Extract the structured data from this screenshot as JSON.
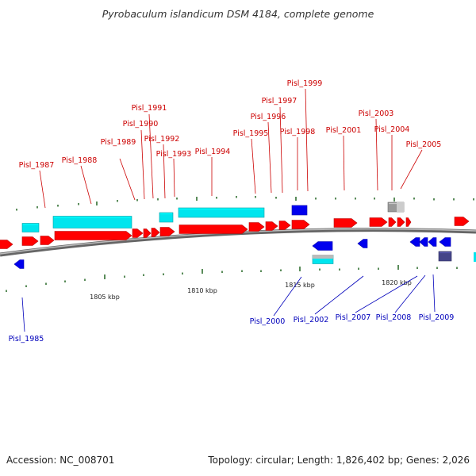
{
  "title": "Pyrobaculum islandicum DSM 4184, complete genome",
  "footer": {
    "accession": "Accession: NC_008701",
    "summary": "Topology: circular; Length: 1,826,402 bp; Genes: 2,026"
  },
  "colors": {
    "forward_cds": "#ff0000",
    "reverse_cds": "#0000ee",
    "forward_rna": "#00e5ee",
    "other_feature": "#999999",
    "backbone": "#888888",
    "forward_label": "#cc0000",
    "reverse_label": "#0000bb",
    "tick": "#226622"
  },
  "ruler": {
    "labels": [
      "1805 kbp",
      "1810 kbp",
      "1815 kbp",
      "1820 kbp"
    ]
  },
  "forward_labels": [
    "Pisl_1987",
    "Pisl_1988",
    "Pisl_1989",
    "Pisl_1990",
    "Pisl_1991",
    "Pisl_1992",
    "Pisl_1993",
    "Pisl_1994",
    "Pisl_1995",
    "Pisl_1996",
    "Pisl_1997",
    "Pisl_1998",
    "Pisl_1999",
    "Pisl_2001",
    "Pisl_2003",
    "Pisl_2004",
    "Pisl_2005"
  ],
  "reverse_labels": [
    "Pisl_1985",
    "Pisl_2000",
    "Pisl_2002",
    "Pisl_2007",
    "Pisl_2008",
    "Pisl_2009"
  ]
}
